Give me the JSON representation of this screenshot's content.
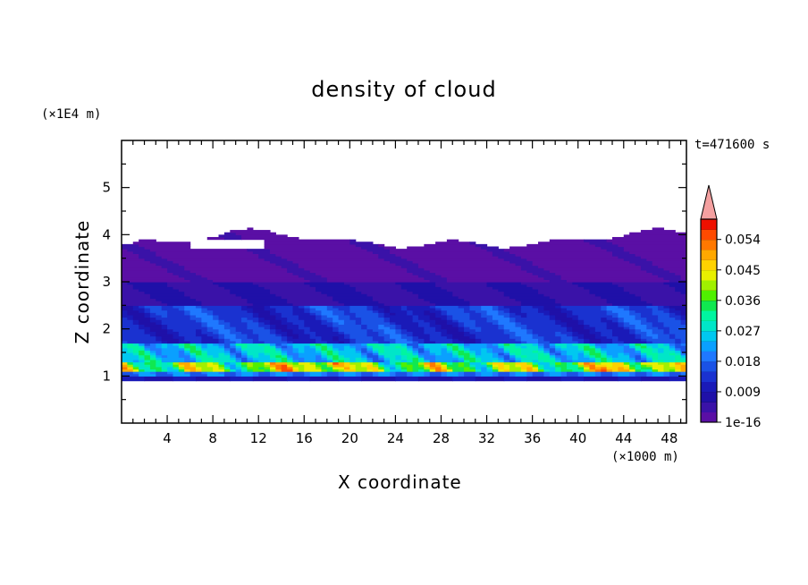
{
  "chart_data": {
    "type": "heatmap",
    "title": "density of cloud",
    "xlabel": "X coordinate",
    "ylabel": "Z coordinate",
    "x_unit_label": "(×1000 m)",
    "y_unit_label": "(×1E4 m)",
    "time_label": "t=471600 s",
    "xlim": [
      0,
      49.5
    ],
    "ylim": [
      0,
      6
    ],
    "x_ticks": [
      4,
      8,
      12,
      16,
      20,
      24,
      28,
      32,
      36,
      40,
      44,
      48
    ],
    "y_ticks": [
      1,
      2,
      3,
      4,
      5
    ],
    "colorbar": {
      "labels": [
        "1e-16",
        "0.009",
        "0.018",
        "0.027",
        "0.036",
        "0.045",
        "0.054"
      ],
      "levels": [
        1e-16,
        0.003,
        0.006,
        0.009,
        0.012,
        0.015,
        0.018,
        0.021,
        0.024,
        0.027,
        0.03,
        0.033,
        0.036,
        0.039,
        0.042,
        0.045,
        0.048,
        0.051,
        0.054,
        0.057,
        0.06
      ],
      "colors": [
        "#5a0fa5",
        "#3a12a8",
        "#1f10a8",
        "#1a1ab8",
        "#1a32d0",
        "#1a52e6",
        "#1f78ff",
        "#0aa0ff",
        "#00c8f0",
        "#00e6c8",
        "#00f5a0",
        "#10e850",
        "#50f000",
        "#a0f000",
        "#e8f000",
        "#ffd200",
        "#ffa800",
        "#ff7800",
        "#ff4a00",
        "#ee1000"
      ],
      "extend_color": "#f4a0a0"
    },
    "bands": [
      {
        "z_range": [
          0.9,
          1.0
        ],
        "level": "0.003–0.009"
      },
      {
        "z_range": [
          1.0,
          1.3
        ],
        "level": "0.030–0.057"
      },
      {
        "z_range": [
          1.3,
          1.7
        ],
        "level": "0.015–0.027"
      },
      {
        "z_range": [
          1.7,
          2.5
        ],
        "level": "0.006–0.015"
      },
      {
        "z_range": [
          2.5,
          3.0
        ],
        "level": "0.003–0.006"
      },
      {
        "z_range": [
          3.0,
          4.1
        ],
        "level": "1e-16–0.003"
      }
    ]
  }
}
